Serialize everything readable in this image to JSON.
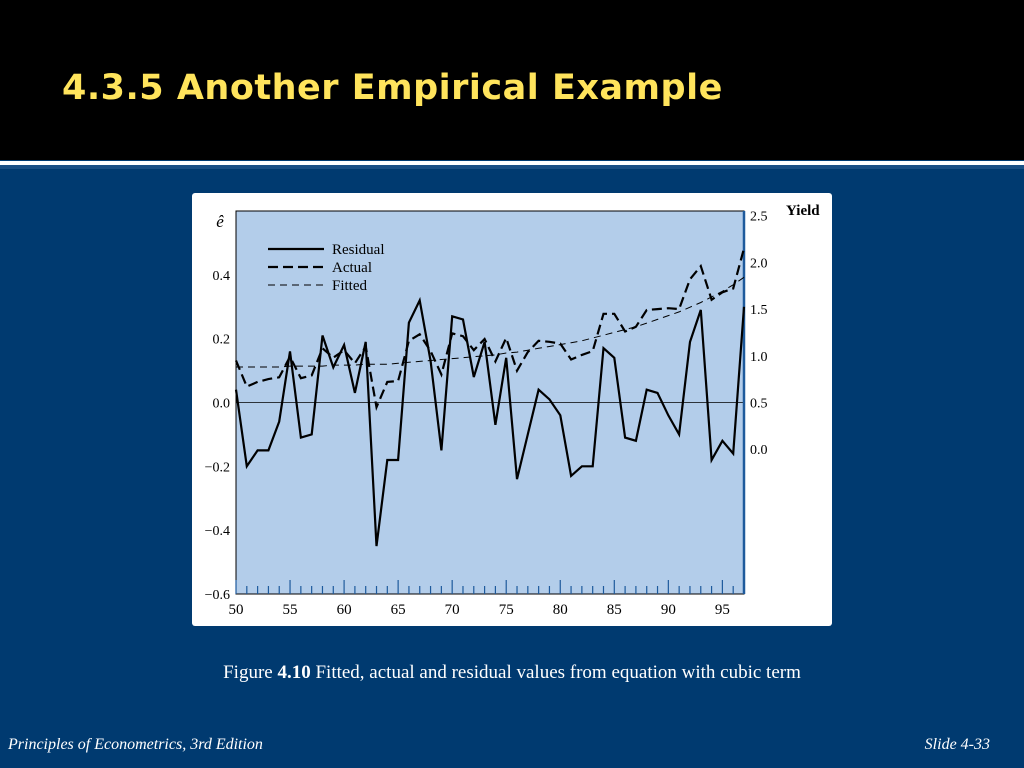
{
  "slide": {
    "title": "4.3.5 Another Empirical Example",
    "caption_prefix": "Figure ",
    "caption_number": "4.10",
    "caption_text": " Fitted, actual and residual values from equation with cubic term",
    "footer_left": "Principles of Econometrics, 3rd Edition",
    "footer_right": "Slide 4-33"
  },
  "colors": {
    "background": "#003a70",
    "header": "#000000",
    "title": "#ffe45c",
    "plot_area": "#b3cdea"
  },
  "chart_data": {
    "type": "line",
    "left_axis_label": "ê",
    "right_axis_label": "Yield",
    "x": [
      50,
      51,
      52,
      53,
      54,
      55,
      56,
      57,
      58,
      59,
      60,
      61,
      62,
      63,
      64,
      65,
      66,
      67,
      68,
      69,
      70,
      71,
      72,
      73,
      74,
      75,
      76,
      77,
      78,
      79,
      80,
      81,
      82,
      83,
      84,
      85,
      86,
      87,
      88,
      89,
      90,
      91,
      92,
      93,
      94,
      95,
      96,
      97
    ],
    "x_range": [
      50,
      97
    ],
    "x_ticks": [
      50,
      55,
      60,
      65,
      70,
      75,
      80,
      85,
      90,
      95
    ],
    "left_ylim": [
      -0.6,
      0.6
    ],
    "left_ticks": [
      {
        "value": -0.6,
        "label": "−0.6"
      },
      {
        "value": -0.4,
        "label": "−0.4"
      },
      {
        "value": -0.2,
        "label": "−0.2"
      },
      {
        "value": 0.0,
        "label": "0.0"
      },
      {
        "value": 0.2,
        "label": "0.2"
      },
      {
        "value": 0.4,
        "label": "0.4"
      }
    ],
    "right_ylim": [
      -1.55,
      2.55
    ],
    "right_ticks": [
      {
        "value": 0.0,
        "label": "0.0"
      },
      {
        "value": 0.5,
        "label": "0.5"
      },
      {
        "value": 1.0,
        "label": "1.0"
      },
      {
        "value": 1.5,
        "label": "1.5"
      },
      {
        "value": 2.0,
        "label": "2.0"
      },
      {
        "value": 2.5,
        "label": "2.5"
      }
    ],
    "series": [
      {
        "name": "Residual",
        "axis": "left",
        "style": "solid",
        "values": [
          0.04,
          -0.2,
          -0.15,
          -0.15,
          -0.06,
          0.16,
          -0.11,
          -0.1,
          0.21,
          0.11,
          0.18,
          0.03,
          0.19,
          -0.45,
          -0.18,
          -0.18,
          0.25,
          0.32,
          0.13,
          -0.15,
          0.27,
          0.26,
          0.08,
          0.19,
          -0.07,
          0.14,
          -0.24,
          -0.1,
          0.04,
          0.01,
          -0.04,
          -0.23,
          -0.2,
          -0.2,
          0.17,
          0.14,
          -0.11,
          -0.12,
          0.04,
          0.03,
          -0.04,
          -0.1,
          0.19,
          0.29,
          -0.18,
          -0.12,
          -0.16,
          0.3
        ]
      },
      {
        "name": "Actual",
        "axis": "right",
        "style": "dashed",
        "values": [
          0.95,
          0.67,
          0.72,
          0.75,
          0.77,
          0.99,
          0.76,
          0.79,
          1.08,
          0.98,
          1.06,
          0.92,
          1.1,
          0.45,
          0.72,
          0.73,
          1.16,
          1.23,
          1.05,
          0.8,
          1.24,
          1.21,
          1.06,
          1.18,
          0.94,
          1.19,
          0.84,
          1.04,
          1.16,
          1.15,
          1.13,
          0.96,
          1.01,
          1.05,
          1.45,
          1.45,
          1.26,
          1.31,
          1.49,
          1.5,
          1.51,
          1.5,
          1.82,
          1.96,
          1.6,
          1.68,
          1.72,
          2.15
        ]
      },
      {
        "name": "Fitted",
        "axis": "right",
        "style": "thin-dashed",
        "values": [
          0.88,
          0.88,
          0.88,
          0.88,
          0.88,
          0.89,
          0.89,
          0.89,
          0.89,
          0.9,
          0.9,
          0.9,
          0.91,
          0.91,
          0.91,
          0.92,
          0.93,
          0.94,
          0.95,
          0.96,
          0.97,
          0.98,
          0.99,
          1.0,
          1.01,
          1.03,
          1.04,
          1.06,
          1.08,
          1.1,
          1.12,
          1.14,
          1.16,
          1.19,
          1.22,
          1.25,
          1.28,
          1.31,
          1.35,
          1.39,
          1.43,
          1.47,
          1.52,
          1.57,
          1.63,
          1.69,
          1.76,
          1.84
        ]
      }
    ]
  }
}
